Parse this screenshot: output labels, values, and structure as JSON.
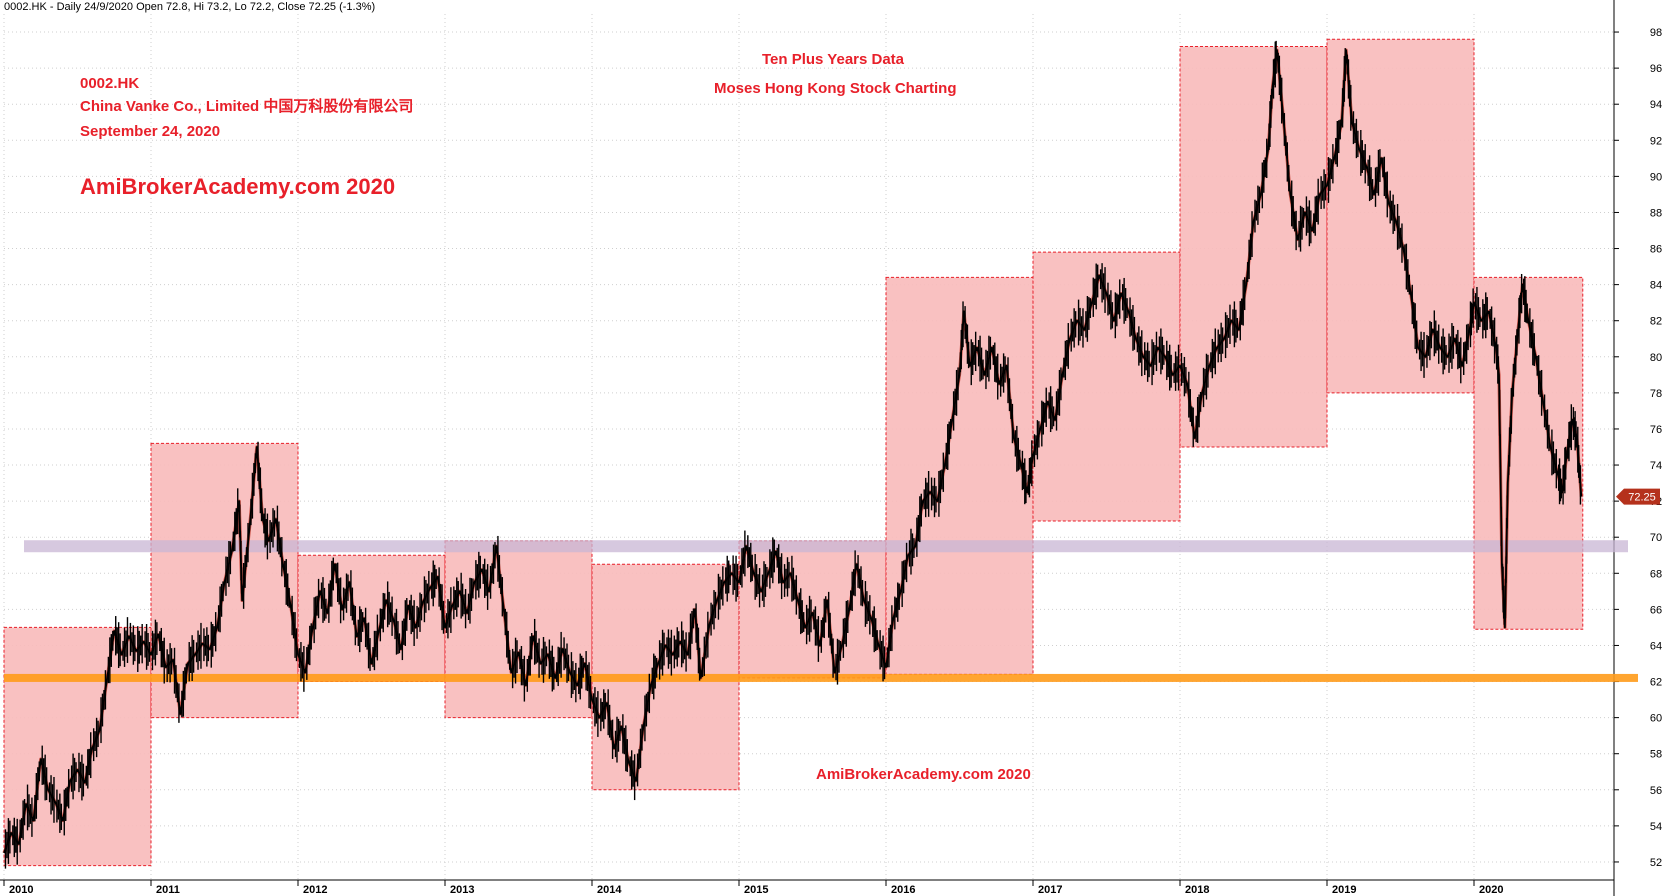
{
  "header": {
    "symbol_line": "0002.HK - Daily 24/9/2020 Open 72.8, Hi 73.2, Lo 72.2, Close 72.25 (-1.3%)"
  },
  "annotations": {
    "ticker": "0002.HK",
    "company": "China Vanke Co., Limited  中国万科股份有限公司",
    "date": "September 24, 2020",
    "brand_large": "AmiBrokerAcademy.com  2020",
    "ten_years": "Ten Plus Years Data",
    "moses": "Moses Hong Kong Stock Charting",
    "brand_bottom": "AmiBrokerAcademy.com  2020"
  },
  "colors": {
    "box_fill": "#f9bcbc",
    "box_border": "#e8202a",
    "support_line": "#ff9b1a",
    "resistance_band": "#c8b6d4",
    "price": "#000000",
    "annotation_red": "#e8202a",
    "last_price_badge": "#b5311c"
  },
  "chart_data": {
    "type": "line",
    "title": "",
    "xlabel": "",
    "ylabel": "",
    "x_ticks": [
      "2010",
      "2011",
      "2012",
      "2013",
      "2014",
      "2015",
      "2016",
      "2017",
      "2018",
      "2019",
      "2020"
    ],
    "ylim": [
      51,
      99
    ],
    "y_ticks": [
      52,
      54,
      56,
      58,
      60,
      62,
      64,
      66,
      68,
      70,
      72,
      74,
      76,
      78,
      80,
      82,
      84,
      86,
      88,
      90,
      92,
      94,
      96,
      98
    ],
    "grid": true,
    "last_price": "72.25",
    "series": [
      {
        "values": [
          [
            2010.0,
            52.5
          ],
          [
            2010.05,
            53.6
          ],
          [
            2010.1,
            53.0
          ],
          [
            2010.15,
            55.2
          ],
          [
            2010.2,
            54.3
          ],
          [
            2010.25,
            57.7
          ],
          [
            2010.3,
            56.0
          ],
          [
            2010.35,
            55.3
          ],
          [
            2010.4,
            54.3
          ],
          [
            2010.45,
            56.5
          ],
          [
            2010.5,
            57.1
          ],
          [
            2010.55,
            56.4
          ],
          [
            2010.6,
            58.3
          ],
          [
            2010.65,
            59.3
          ],
          [
            2010.7,
            62.1
          ],
          [
            2010.75,
            64.8
          ],
          [
            2010.8,
            63.5
          ],
          [
            2010.85,
            64.5
          ],
          [
            2010.9,
            63.7
          ],
          [
            2010.95,
            64.2
          ],
          [
            2011.0,
            63.5
          ],
          [
            2011.05,
            64.6
          ],
          [
            2011.1,
            62.8
          ],
          [
            2011.15,
            63.2
          ],
          [
            2011.2,
            60.2
          ],
          [
            2011.25,
            63.0
          ],
          [
            2011.3,
            63.5
          ],
          [
            2011.35,
            64.1
          ],
          [
            2011.4,
            63.8
          ],
          [
            2011.45,
            65.0
          ],
          [
            2011.5,
            67.5
          ],
          [
            2011.55,
            69.2
          ],
          [
            2011.6,
            72.0
          ],
          [
            2011.62,
            66.5
          ],
          [
            2011.67,
            70.5
          ],
          [
            2011.72,
            75.0
          ],
          [
            2011.76,
            71.0
          ],
          [
            2011.8,
            69.8
          ],
          [
            2011.85,
            71.0
          ],
          [
            2011.9,
            68.4
          ],
          [
            2011.95,
            66.2
          ],
          [
            2012.0,
            63.5
          ],
          [
            2012.05,
            62.5
          ],
          [
            2012.1,
            65.0
          ],
          [
            2012.15,
            67.0
          ],
          [
            2012.2,
            65.8
          ],
          [
            2012.25,
            68.5
          ],
          [
            2012.3,
            66.0
          ],
          [
            2012.35,
            67.5
          ],
          [
            2012.4,
            64.5
          ],
          [
            2012.45,
            65.5
          ],
          [
            2012.5,
            63.0
          ],
          [
            2012.55,
            64.8
          ],
          [
            2012.6,
            66.5
          ],
          [
            2012.65,
            65.4
          ],
          [
            2012.7,
            63.8
          ],
          [
            2012.75,
            66.2
          ],
          [
            2012.8,
            65.0
          ],
          [
            2012.85,
            66.4
          ],
          [
            2012.9,
            67.2
          ],
          [
            2012.95,
            67.8
          ],
          [
            2013.0,
            65.0
          ],
          [
            2013.05,
            66.2
          ],
          [
            2013.1,
            67.0
          ],
          [
            2013.15,
            65.8
          ],
          [
            2013.2,
            67.5
          ],
          [
            2013.25,
            68.2
          ],
          [
            2013.3,
            67.0
          ],
          [
            2013.35,
            69.5
          ],
          [
            2013.4,
            66.0
          ],
          [
            2013.45,
            62.5
          ],
          [
            2013.5,
            63.6
          ],
          [
            2013.55,
            61.8
          ],
          [
            2013.6,
            64.5
          ],
          [
            2013.65,
            63.0
          ],
          [
            2013.7,
            63.5
          ],
          [
            2013.75,
            62.2
          ],
          [
            2013.8,
            63.8
          ],
          [
            2013.85,
            62.5
          ],
          [
            2013.9,
            61.8
          ],
          [
            2013.95,
            63.0
          ],
          [
            2014.0,
            61.0
          ],
          [
            2014.05,
            60.0
          ],
          [
            2014.1,
            60.8
          ],
          [
            2014.15,
            58.3
          ],
          [
            2014.2,
            59.5
          ],
          [
            2014.25,
            57.5
          ],
          [
            2014.3,
            56.5
          ],
          [
            2014.35,
            59.5
          ],
          [
            2014.4,
            61.8
          ],
          [
            2014.45,
            63.0
          ],
          [
            2014.5,
            64.0
          ],
          [
            2014.55,
            63.5
          ],
          [
            2014.6,
            64.2
          ],
          [
            2014.65,
            63.5
          ],
          [
            2014.7,
            66.0
          ],
          [
            2014.74,
            62.2
          ],
          [
            2014.8,
            65.2
          ],
          [
            2014.85,
            66.5
          ],
          [
            2014.9,
            67.5
          ],
          [
            2014.95,
            68.0
          ],
          [
            2015.0,
            67.5
          ],
          [
            2015.05,
            69.5
          ],
          [
            2015.1,
            68.0
          ],
          [
            2015.15,
            67.0
          ],
          [
            2015.2,
            68.0
          ],
          [
            2015.25,
            69.2
          ],
          [
            2015.3,
            67.5
          ],
          [
            2015.35,
            68.0
          ],
          [
            2015.4,
            66.5
          ],
          [
            2015.45,
            65.0
          ],
          [
            2015.5,
            65.8
          ],
          [
            2015.55,
            64.0
          ],
          [
            2015.6,
            66.5
          ],
          [
            2015.65,
            62.5
          ],
          [
            2015.7,
            64.0
          ],
          [
            2015.75,
            66.0
          ],
          [
            2015.8,
            68.5
          ],
          [
            2015.85,
            66.5
          ],
          [
            2015.9,
            65.5
          ],
          [
            2015.95,
            64.0
          ],
          [
            2016.0,
            62.8
          ],
          [
            2016.05,
            65.5
          ],
          [
            2016.1,
            67.0
          ],
          [
            2016.15,
            69.0
          ],
          [
            2016.2,
            69.5
          ],
          [
            2016.25,
            72.0
          ],
          [
            2016.3,
            72.5
          ],
          [
            2016.35,
            72.0
          ],
          [
            2016.4,
            74.0
          ],
          [
            2016.45,
            76.5
          ],
          [
            2016.5,
            79.0
          ],
          [
            2016.53,
            82.5
          ],
          [
            2016.57,
            79.5
          ],
          [
            2016.62,
            80.5
          ],
          [
            2016.67,
            79.0
          ],
          [
            2016.72,
            80.5
          ],
          [
            2016.77,
            78.5
          ],
          [
            2016.82,
            79.5
          ],
          [
            2016.87,
            75.5
          ],
          [
            2016.92,
            74.0
          ],
          [
            2016.96,
            72.5
          ],
          [
            2017.0,
            74.5
          ],
          [
            2017.05,
            76.0
          ],
          [
            2017.1,
            77.5
          ],
          [
            2017.15,
            76.5
          ],
          [
            2017.2,
            79.0
          ],
          [
            2017.25,
            81.0
          ],
          [
            2017.3,
            82.0
          ],
          [
            2017.35,
            81.5
          ],
          [
            2017.4,
            83.0
          ],
          [
            2017.45,
            84.5
          ],
          [
            2017.5,
            83.5
          ],
          [
            2017.55,
            82.0
          ],
          [
            2017.6,
            83.5
          ],
          [
            2017.65,
            82.5
          ],
          [
            2017.7,
            81.0
          ],
          [
            2017.75,
            80.0
          ],
          [
            2017.8,
            79.5
          ],
          [
            2017.85,
            80.5
          ],
          [
            2017.9,
            80.0
          ],
          [
            2017.95,
            79.0
          ],
          [
            2018.0,
            79.5
          ],
          [
            2018.05,
            78.5
          ],
          [
            2018.1,
            75.5
          ],
          [
            2018.15,
            78.0
          ],
          [
            2018.2,
            79.5
          ],
          [
            2018.25,
            80.5
          ],
          [
            2018.3,
            81.0
          ],
          [
            2018.35,
            82.0
          ],
          [
            2018.4,
            81.5
          ],
          [
            2018.45,
            84.0
          ],
          [
            2018.5,
            87.5
          ],
          [
            2018.55,
            89.0
          ],
          [
            2018.6,
            91.5
          ],
          [
            2018.63,
            95.0
          ],
          [
            2018.66,
            97.0
          ],
          [
            2018.7,
            93.5
          ],
          [
            2018.75,
            89.0
          ],
          [
            2018.8,
            86.5
          ],
          [
            2018.85,
            88.0
          ],
          [
            2018.9,
            87.0
          ],
          [
            2018.95,
            89.0
          ],
          [
            2019.0,
            89.5
          ],
          [
            2019.05,
            91.0
          ],
          [
            2019.1,
            93.0
          ],
          [
            2019.13,
            97.0
          ],
          [
            2019.17,
            93.0
          ],
          [
            2019.22,
            91.5
          ],
          [
            2019.27,
            90.5
          ],
          [
            2019.32,
            89.0
          ],
          [
            2019.37,
            91.0
          ],
          [
            2019.42,
            88.5
          ],
          [
            2019.47,
            87.5
          ],
          [
            2019.52,
            86.0
          ],
          [
            2019.57,
            83.5
          ],
          [
            2019.62,
            80.5
          ],
          [
            2019.67,
            80.0
          ],
          [
            2019.72,
            81.5
          ],
          [
            2019.77,
            80.5
          ],
          [
            2019.82,
            80.0
          ],
          [
            2019.87,
            81.0
          ],
          [
            2019.92,
            79.5
          ],
          [
            2019.97,
            81.5
          ],
          [
            2020.0,
            83.0
          ],
          [
            2020.05,
            82.0
          ],
          [
            2020.1,
            82.5
          ],
          [
            2020.15,
            80.5
          ],
          [
            2020.17,
            79.0
          ],
          [
            2020.19,
            68.5
          ],
          [
            2020.21,
            65.0
          ],
          [
            2020.23,
            73.0
          ],
          [
            2020.26,
            78.0
          ],
          [
            2020.3,
            81.5
          ],
          [
            2020.33,
            84.0
          ],
          [
            2020.37,
            82.0
          ],
          [
            2020.42,
            80.0
          ],
          [
            2020.47,
            77.5
          ],
          [
            2020.52,
            75.0
          ],
          [
            2020.57,
            73.5
          ],
          [
            2020.6,
            72.5
          ],
          [
            2020.63,
            74.5
          ],
          [
            2020.67,
            76.5
          ],
          [
            2020.7,
            75.5
          ],
          [
            2020.73,
            72.25
          ]
        ]
      }
    ],
    "support_level": 62.2,
    "resistance_level": 69.5,
    "boxes": [
      {
        "x0": 2010.0,
        "x1": 2011.0,
        "y0": 51.8,
        "y1": 65.0
      },
      {
        "x0": 2011.0,
        "x1": 2012.0,
        "y0": 60.0,
        "y1": 75.2
      },
      {
        "x0": 2012.0,
        "x1": 2013.0,
        "y0": 62.0,
        "y1": 69.0
      },
      {
        "x0": 2013.0,
        "x1": 2014.0,
        "y0": 60.0,
        "y1": 69.8
      },
      {
        "x0": 2014.0,
        "x1": 2015.0,
        "y0": 56.0,
        "y1": 68.5
      },
      {
        "x0": 2015.0,
        "x1": 2016.0,
        "y0": 62.2,
        "y1": 69.8
      },
      {
        "x0": 2016.0,
        "x1": 2017.0,
        "y0": 62.4,
        "y1": 84.4
      },
      {
        "x0": 2017.0,
        "x1": 2018.0,
        "y0": 70.9,
        "y1": 85.8
      },
      {
        "x0": 2018.0,
        "x1": 2019.0,
        "y0": 75.0,
        "y1": 97.2
      },
      {
        "x0": 2019.0,
        "x1": 2020.0,
        "y0": 78.0,
        "y1": 97.6
      },
      {
        "x0": 2020.0,
        "x1": 2020.74,
        "y0": 64.9,
        "y1": 84.4
      }
    ]
  }
}
